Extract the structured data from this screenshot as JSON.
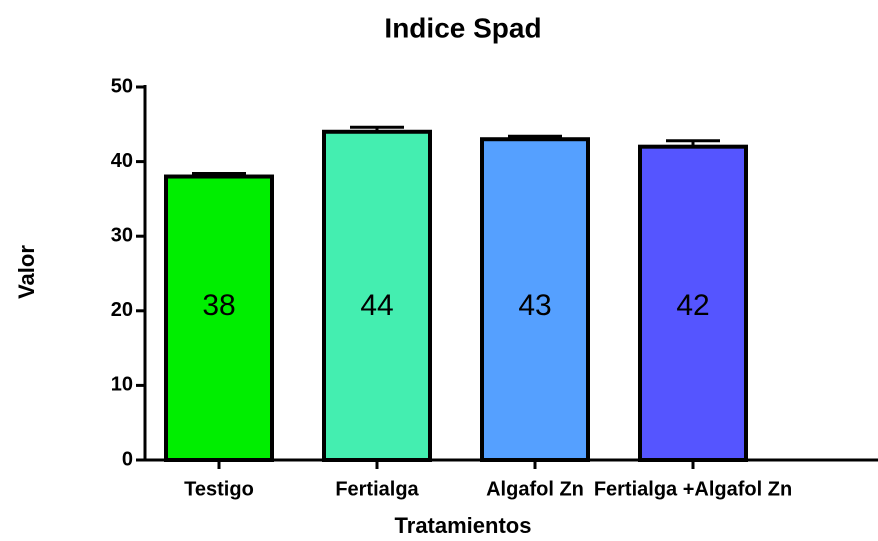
{
  "chart_data": {
    "type": "bar",
    "title": "Indice Spad",
    "x_label": "Tratamientos",
    "y_label": "Valor",
    "categories": [
      "Testigo",
      "Fertialga",
      "Algafol Zn",
      "Fertialga +Algafol Zn"
    ],
    "values": [
      38,
      44,
      43,
      42
    ],
    "errors": [
      0.4,
      0.6,
      0.4,
      0.8
    ],
    "colors": [
      "#00ee00",
      "#44eeb0",
      "#55a0ff",
      "#5555ff"
    ],
    "ylim": [
      0,
      50
    ],
    "yticks": [
      0,
      10,
      20,
      30,
      40,
      50
    ],
    "grid": false
  }
}
